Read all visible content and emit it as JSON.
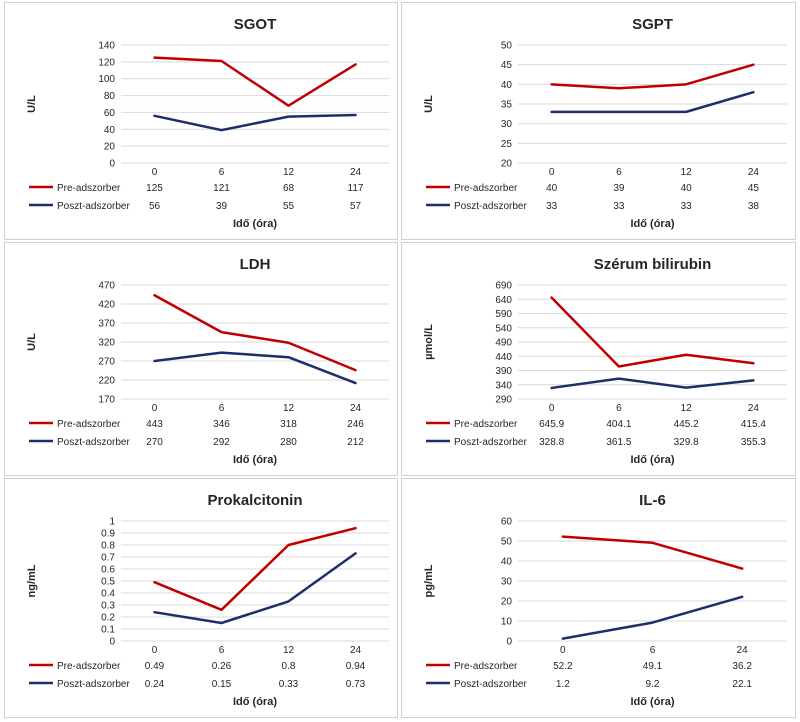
{
  "colors": {
    "pre": "#c00000",
    "post": "#1f2e6b",
    "grid": "#d9d9d9",
    "text": "#262626"
  },
  "chart_data": [
    {
      "type": "line",
      "title": "SGOT",
      "xlabel": "Idő (óra)",
      "ylabel": "U/L",
      "categories": [
        "0",
        "6",
        "12",
        "24"
      ],
      "ylim": [
        0,
        140
      ],
      "yticks": [
        0,
        20,
        40,
        60,
        80,
        100,
        120,
        140
      ],
      "grid": true,
      "legend": "data-table-bottom",
      "series": [
        {
          "name": "Pre-adszorber",
          "values": [
            125,
            121,
            68,
            117
          ],
          "labels": [
            "125",
            "121",
            "68",
            "117"
          ]
        },
        {
          "name": "Poszt-adszorber",
          "values": [
            56,
            39,
            55,
            57
          ],
          "labels": [
            "56",
            "39",
            "55",
            "57"
          ]
        }
      ]
    },
    {
      "type": "line",
      "title": "SGPT",
      "xlabel": "Idő (óra)",
      "ylabel": "U/L",
      "categories": [
        "0",
        "6",
        "12",
        "24"
      ],
      "ylim": [
        20,
        50
      ],
      "yticks": [
        20,
        25,
        30,
        35,
        40,
        45,
        50
      ],
      "grid": true,
      "legend": "data-table-bottom",
      "series": [
        {
          "name": "Pre-adszorber",
          "values": [
            40,
            39,
            40,
            45
          ],
          "labels": [
            "40",
            "39",
            "40",
            "45"
          ]
        },
        {
          "name": "Poszt-adszorber",
          "values": [
            33,
            33,
            33,
            38
          ],
          "labels": [
            "33",
            "33",
            "33",
            "38"
          ]
        }
      ]
    },
    {
      "type": "line",
      "title": "LDH",
      "xlabel": "Idő (óra)",
      "ylabel": "U/L",
      "categories": [
        "0",
        "6",
        "12",
        "24"
      ],
      "ylim": [
        170,
        470
      ],
      "yticks": [
        170,
        220,
        270,
        320,
        370,
        420,
        470
      ],
      "grid": true,
      "legend": "data-table-bottom",
      "series": [
        {
          "name": "Pre-adszorber",
          "values": [
            443,
            346,
            318,
            246
          ],
          "labels": [
            "443",
            "346",
            "318",
            "246"
          ]
        },
        {
          "name": "Poszt-adszorber",
          "values": [
            270,
            292,
            280,
            212
          ],
          "labels": [
            "270",
            "292",
            "280",
            "212"
          ]
        }
      ]
    },
    {
      "type": "line",
      "title": "Szérum bilirubin",
      "xlabel": "Idő (óra)",
      "ylabel": "µmol/L",
      "categories": [
        "0",
        "6",
        "12",
        "24"
      ],
      "ylim": [
        290,
        690
      ],
      "yticks": [
        290,
        340,
        390,
        440,
        490,
        540,
        590,
        640,
        690
      ],
      "grid": true,
      "legend": "data-table-bottom",
      "series": [
        {
          "name": "Pre-adszorber",
          "values": [
            645.9,
            404.1,
            445.2,
            415.4
          ],
          "labels": [
            "645.9",
            "404.1",
            "445.2",
            "415.4"
          ]
        },
        {
          "name": "Poszt-adszorber",
          "values": [
            328.8,
            361.5,
            329.8,
            355.3
          ],
          "labels": [
            "328.8",
            "361.5",
            "329.8",
            "355.3"
          ]
        }
      ]
    },
    {
      "type": "line",
      "title": "Prokalcitonin",
      "xlabel": "Idő (óra)",
      "ylabel": "ng/mL",
      "categories": [
        "0",
        "6",
        "12",
        "24"
      ],
      "ylim": [
        0,
        1
      ],
      "yticks": [
        "0",
        "0.1",
        "0.2",
        "0.3",
        "0.4",
        "0.5",
        "0.6",
        "0.7",
        "0.8",
        "0.9",
        "1"
      ],
      "grid": true,
      "legend": "data-table-bottom",
      "series": [
        {
          "name": "Pre-adszorber",
          "values": [
            0.49,
            0.26,
            0.8,
            0.94
          ],
          "labels": [
            "0.49",
            "0.26",
            "0.8",
            "0.94"
          ]
        },
        {
          "name": "Poszt-adszorber",
          "values": [
            0.24,
            0.15,
            0.33,
            0.73
          ],
          "labels": [
            "0.24",
            "0.15",
            "0.33",
            "0.73"
          ]
        }
      ]
    },
    {
      "type": "line",
      "title": "IL-6",
      "xlabel": "Idő (óra)",
      "ylabel": "pg/mL",
      "categories": [
        "0",
        "6",
        "24"
      ],
      "ylim": [
        0,
        60
      ],
      "yticks": [
        0,
        10,
        20,
        30,
        40,
        50,
        60
      ],
      "grid": true,
      "legend": "data-table-bottom",
      "series": [
        {
          "name": "Pre-adszorber",
          "values": [
            52.2,
            49.1,
            36.2
          ],
          "labels": [
            "52.2",
            "49.1",
            "36.2"
          ]
        },
        {
          "name": "Poszt-adszorber",
          "values": [
            1.2,
            9.2,
            22.1
          ],
          "labels": [
            "1.2",
            "9.2",
            "22.1"
          ]
        }
      ]
    }
  ]
}
